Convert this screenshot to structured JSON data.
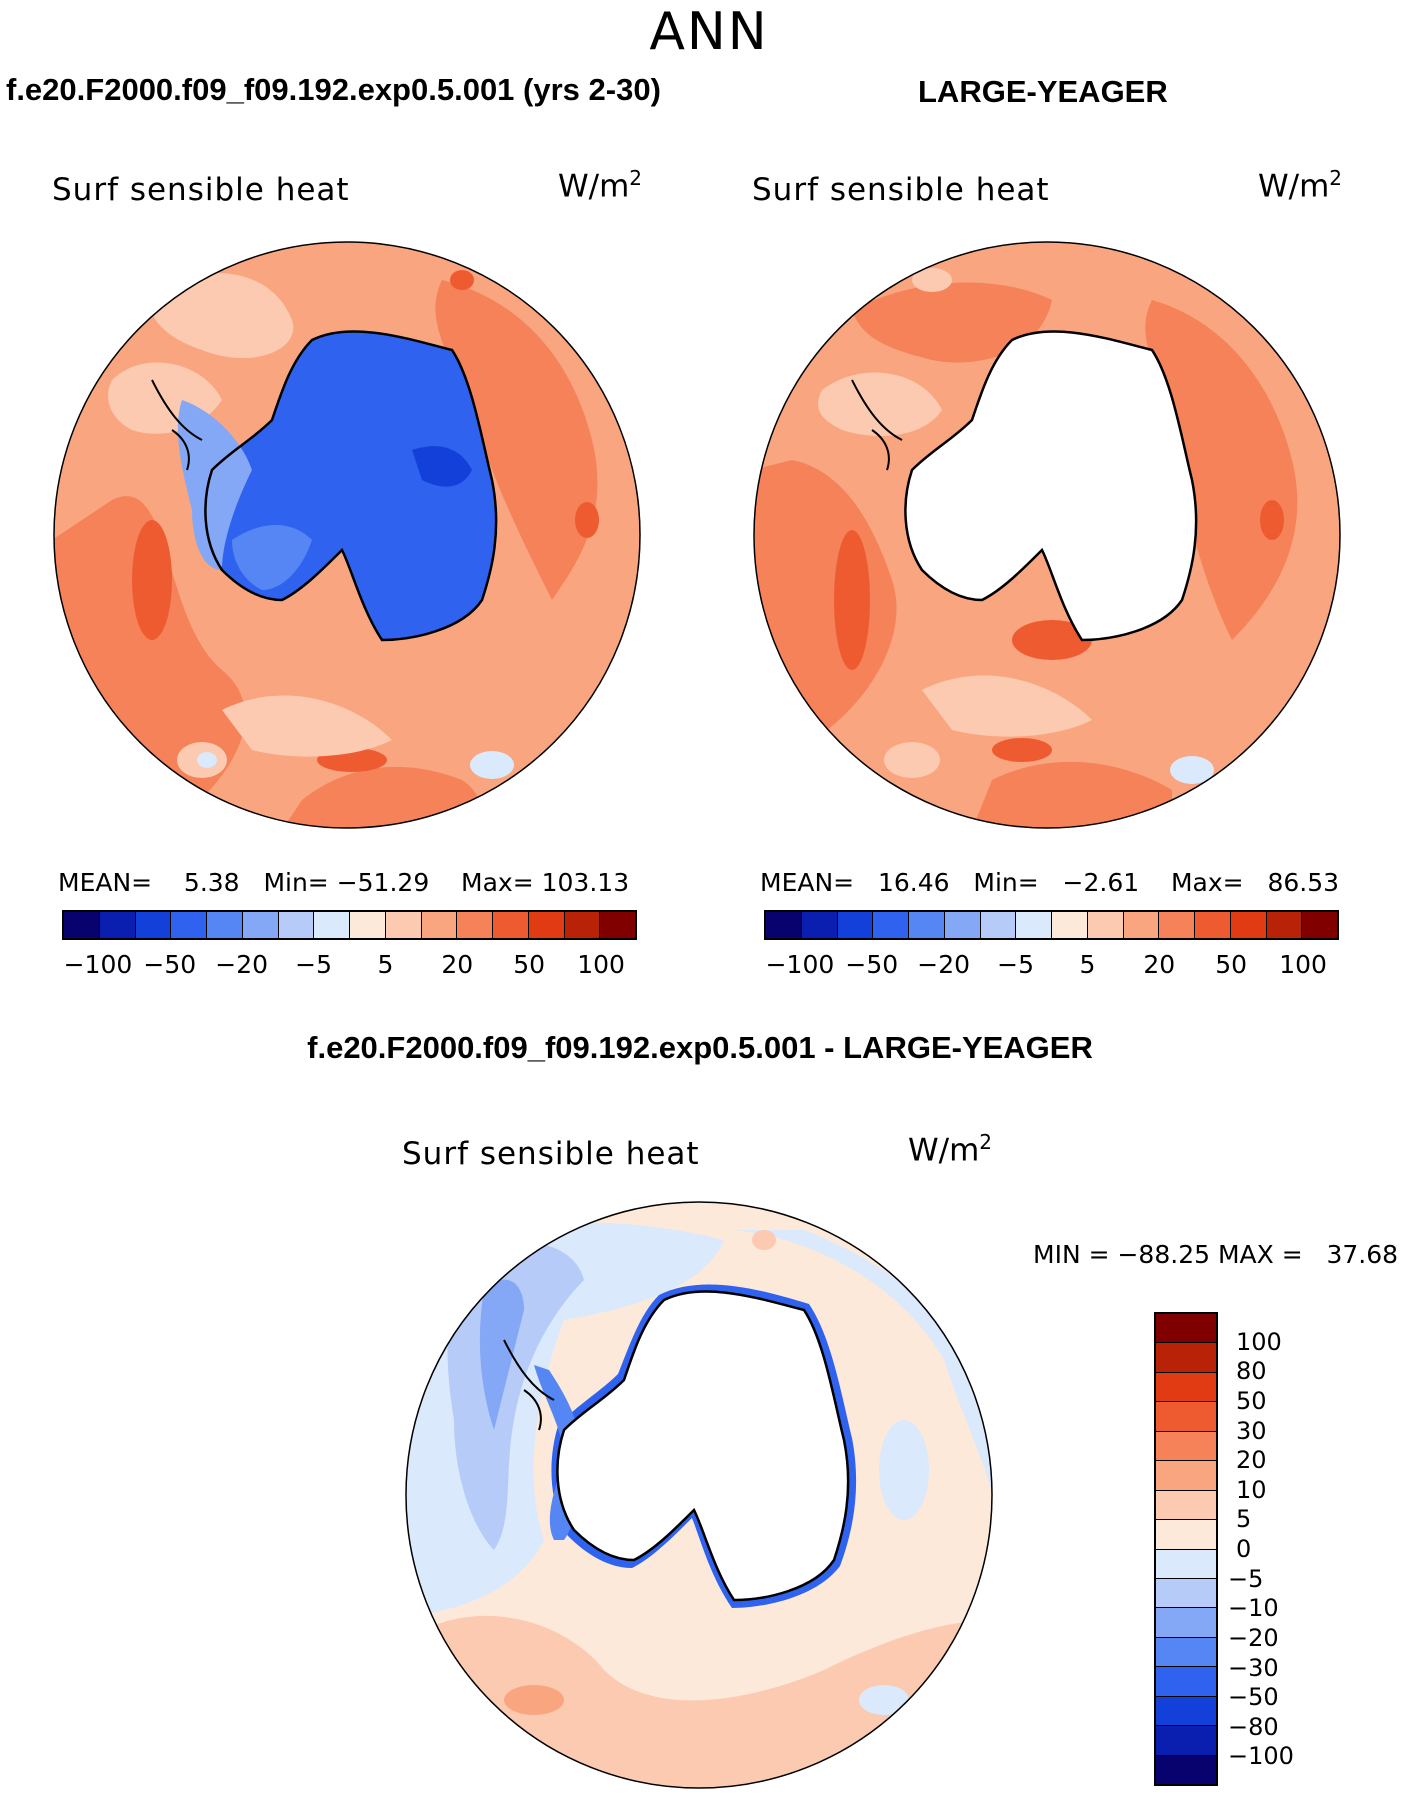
{
  "page": {
    "title": "ANN"
  },
  "panels": [
    {
      "case_title": "f.e20.F2000.f09_f09.192.exp0.5.001 (yrs 2-30)",
      "variable": "Surf sensible heat",
      "units_base": "W/m",
      "units_exp": "2",
      "mean_label": "MEAN=",
      "mean": "5.38",
      "min_label": "Min=",
      "min": "−51.29",
      "max_label": "Max=",
      "max": "103.13"
    },
    {
      "case_title": "LARGE-YEAGER",
      "variable": "Surf sensible heat",
      "units_base": "W/m",
      "units_exp": "2",
      "mean_label": "MEAN=",
      "mean": "16.46",
      "min_label": "Min=",
      "min": "−2.61",
      "max_label": "Max=",
      "max": "86.53"
    }
  ],
  "abs_colorbar": {
    "colors": [
      "#08026e",
      "#0a1fb0",
      "#1240d8",
      "#2f62ee",
      "#5586f4",
      "#84a8f6",
      "#b6cbf8",
      "#dae9fc",
      "#fde9d9",
      "#fccab0",
      "#f9a680",
      "#f58258",
      "#ef5b31",
      "#e13b14",
      "#b82206",
      "#800000"
    ],
    "tick_labels": [
      "−100",
      "−50",
      "−20",
      "−5",
      "5",
      "20",
      "50",
      "100"
    ]
  },
  "diff_panel": {
    "title": "f.e20.F2000.f09_f09.192.exp0.5.001 - LARGE-YEAGER",
    "variable": "Surf sensible heat",
    "units_base": "W/m",
    "units_exp": "2",
    "minmax_label": "MIN = −88.25 MAX =   37.68"
  },
  "diff_colorbar": {
    "colors": [
      "#800000",
      "#b82206",
      "#e13b14",
      "#ef5b31",
      "#f58258",
      "#f9a680",
      "#fccab0",
      "#fde9d9",
      "#dae9fc",
      "#b6cbf8",
      "#84a8f6",
      "#5586f4",
      "#2f62ee",
      "#1240d8",
      "#0a1fb0",
      "#08026e"
    ],
    "tick_labels": [
      "100",
      "80",
      "50",
      "30",
      "20",
      "10",
      "5",
      "0",
      "−5",
      "−10",
      "−20",
      "−30",
      "−50",
      "−80",
      "−100"
    ]
  },
  "map_colors": {
    "ocean_warm_1": "#fccab0",
    "ocean_warm_2": "#f9a680",
    "ocean_warm_3": "#f58258",
    "ocean_warm_4": "#ef5b31",
    "ocean_cool_1": "#dae9fc",
    "ocean_cool_2": "#b6cbf8",
    "ice_1": "#2f62ee",
    "ice_2": "#5586f4",
    "ice_3": "#84a8f6",
    "diff_light": "#fde9d9",
    "land_mask": "#ffffff"
  }
}
